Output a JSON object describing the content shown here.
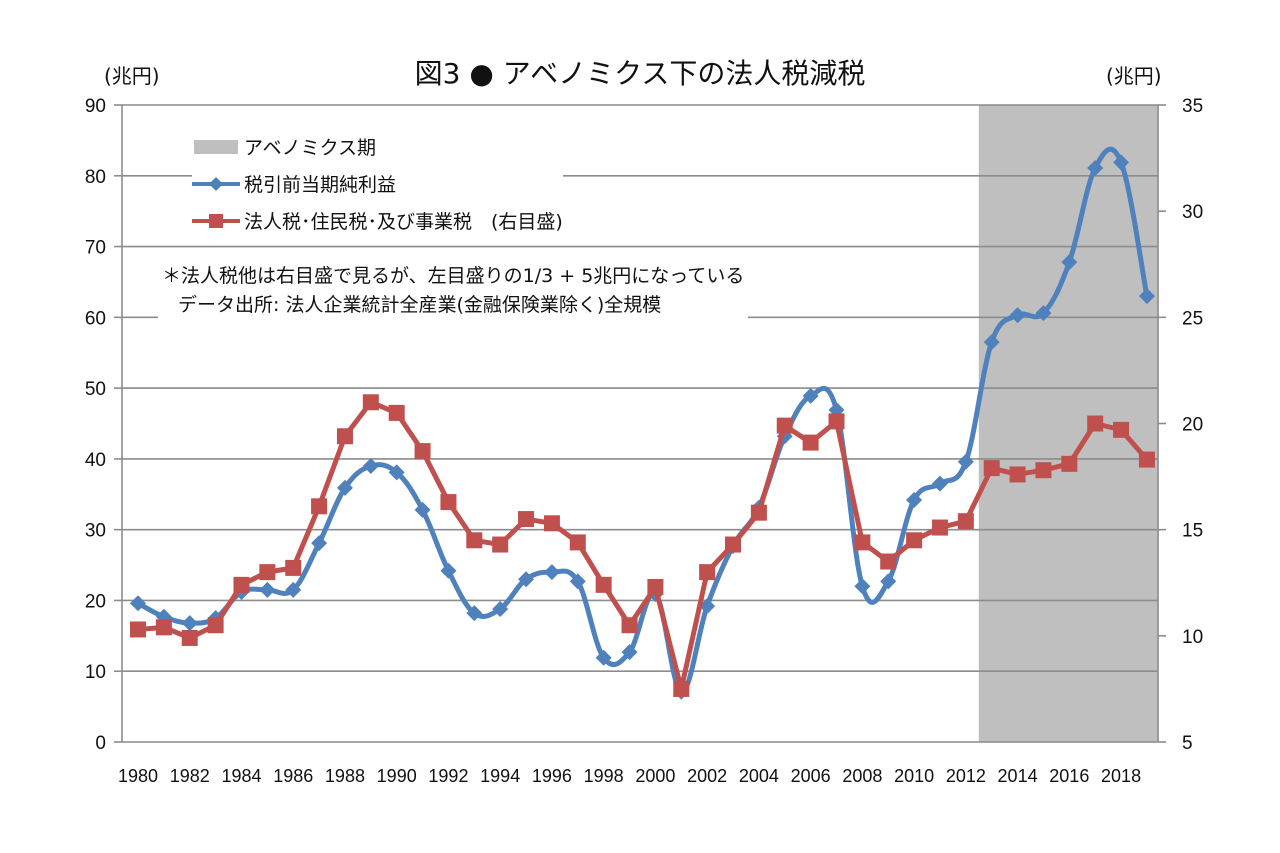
{
  "chart_data": {
    "type": "line",
    "title": "図3 ● アベノミクス下の法人税減税",
    "ylabel_left": "(兆円)",
    "ylabel_right": "(兆円)",
    "ylim_left": [
      0,
      90
    ],
    "ylim_right": [
      5,
      35
    ],
    "yticks_left": [
      "0",
      "10",
      "20",
      "30",
      "40",
      "50",
      "60",
      "70",
      "80",
      "90"
    ],
    "yticks_right": [
      "5",
      "10",
      "15",
      "20",
      "25",
      "30",
      "35"
    ],
    "x": [
      1980,
      1981,
      1982,
      1983,
      1984,
      1985,
      1986,
      1987,
      1988,
      1989,
      1990,
      1991,
      1992,
      1993,
      1994,
      1995,
      1996,
      1997,
      1998,
      1999,
      2000,
      2001,
      2002,
      2003,
      2004,
      2005,
      2006,
      2007,
      2008,
      2009,
      2010,
      2011,
      2012,
      2013,
      2014,
      2015,
      2016,
      2017,
      2018,
      2019
    ],
    "xticks": [
      "1980",
      "1982",
      "1984",
      "1986",
      "1988",
      "1990",
      "1992",
      "1994",
      "1996",
      "1998",
      "2000",
      "2002",
      "2004",
      "2006",
      "2008",
      "2010",
      "2012",
      "2014",
      "2016",
      "2018"
    ],
    "grid": true,
    "shaded_period": {
      "label": "アベノミクス期",
      "from": 2012.5,
      "to": 2019.45,
      "color": "#bfbfbf"
    },
    "series": [
      {
        "name": "税引前当期純利益",
        "axis": "left",
        "color": "#4f81bd",
        "marker": "diamond",
        "smooth": true,
        "values": [
          19.6,
          17.7,
          16.8,
          17.5,
          21.2,
          21.5,
          21.5,
          28.1,
          35.9,
          39.0,
          38.1,
          32.8,
          24.2,
          18.2,
          18.8,
          23.0,
          24.0,
          22.7,
          11.9,
          12.7,
          20.9,
          7.1,
          19.2,
          27.7,
          33.1,
          43.2,
          48.9,
          46.9,
          22.0,
          22.7,
          34.2,
          36.5,
          39.6,
          56.5,
          60.3,
          60.6,
          67.8,
          81.1,
          81.9,
          63.0
        ]
      },
      {
        "name": "法人税･住民税･及び事業税　(右目盛)",
        "axis": "right",
        "color": "#c0504d",
        "marker": "square",
        "smooth": false,
        "values": [
          10.3,
          10.4,
          9.9,
          10.5,
          12.4,
          13.0,
          13.2,
          16.1,
          19.4,
          21.0,
          20.5,
          18.7,
          16.3,
          14.5,
          14.3,
          15.5,
          15.3,
          14.4,
          12.4,
          10.5,
          12.3,
          7.5,
          13.0,
          14.3,
          15.8,
          19.9,
          19.1,
          20.1,
          14.4,
          13.5,
          14.5,
          15.1,
          15.4,
          17.9,
          17.6,
          17.8,
          18.1,
          20.0,
          19.7,
          18.3
        ]
      }
    ],
    "legend": {
      "placement": "top-left",
      "items": [
        "アベノミクス期",
        "税引前当期純利益",
        "法人税･住民税･及び事業税　(右目盛)"
      ]
    },
    "annotations": [
      "＊法人税他は右目盛で見るが、左目盛りの1/3 + 5兆円になっている",
      "データ出所: 法人企業統計全産業(金融保険業除く)全規模"
    ]
  }
}
